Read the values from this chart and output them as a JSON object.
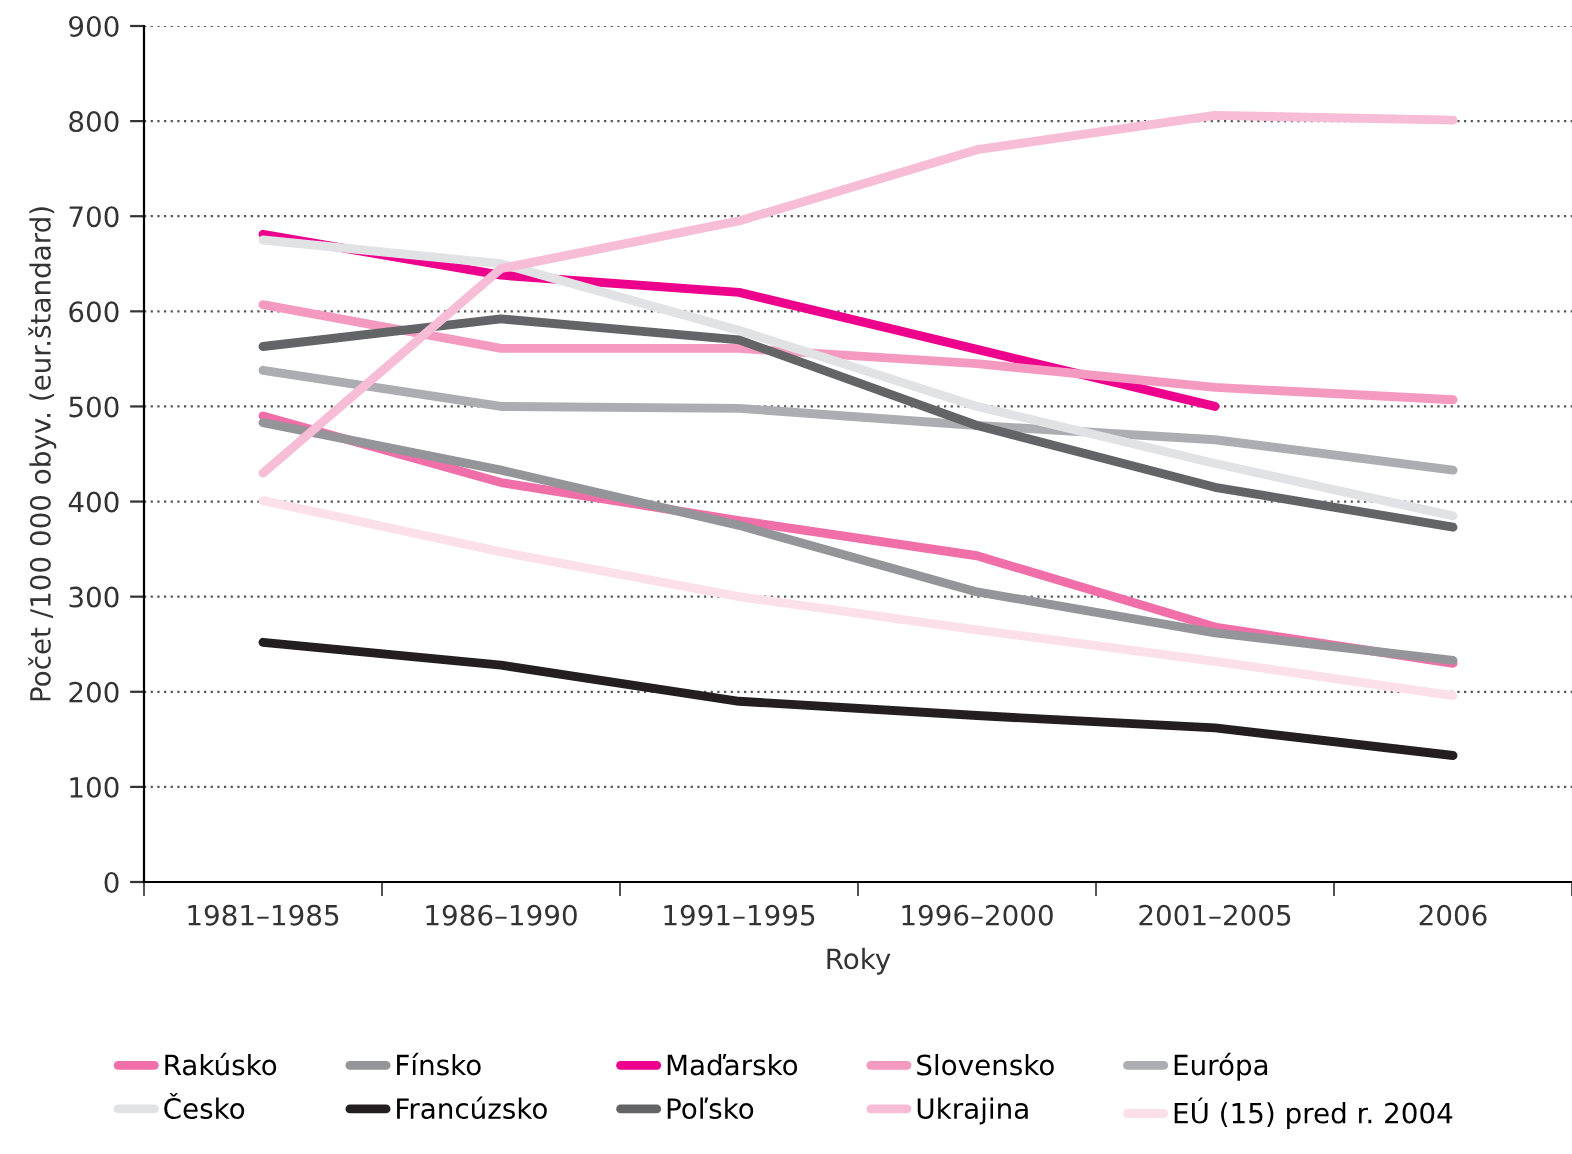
{
  "chart_data": {
    "type": "line",
    "xlabel": "Roky",
    "ylabel": "Počet /100 000 obyv. (eur.štandard)",
    "categories": [
      "1981–1985",
      "1986–1990",
      "1991–1995",
      "1996–2000",
      "2001–2005",
      "2006"
    ],
    "ylim": [
      0,
      900
    ],
    "yticks": [
      0,
      100,
      200,
      300,
      400,
      500,
      600,
      700,
      800,
      900
    ],
    "grid": "y",
    "legend": "bottom",
    "marker": "none",
    "line_style": "solid",
    "series": [
      {
        "name": "Rakúsko",
        "color": "#f06fa8",
        "values": [
          490,
          420,
          380,
          343,
          268,
          230
        ]
      },
      {
        "name": "Fínsko",
        "color": "#939598",
        "values": [
          483,
          433,
          375,
          305,
          262,
          233
        ]
      },
      {
        "name": "Maďarsko",
        "color": "#ec008c",
        "values": [
          681,
          638,
          620,
          560,
          500,
          null
        ]
      },
      {
        "name": "Slovensko",
        "color": "#f49ac1",
        "values": [
          607,
          561,
          561,
          545,
          520,
          507
        ]
      },
      {
        "name": "Európa",
        "color": "#acadb0",
        "values": [
          538,
          500,
          498,
          480,
          465,
          433
        ]
      },
      {
        "name": "Česko",
        "color": "#e1e2e3",
        "values": [
          675,
          650,
          580,
          500,
          440,
          385
        ]
      },
      {
        "name": "Francúzsko",
        "color": "#231f20",
        "values": [
          252,
          228,
          190,
          175,
          162,
          133
        ]
      },
      {
        "name": "Poľsko",
        "color": "#636466",
        "values": [
          563,
          592,
          570,
          480,
          415,
          373
        ]
      },
      {
        "name": "Ukrajina",
        "color": "#f7bcd6",
        "values": [
          430,
          645,
          695,
          770,
          806,
          801
        ]
      },
      {
        "name": "EÚ (15) pred r. 2004",
        "color": "#fbe0ea",
        "values": [
          401,
          347,
          300,
          265,
          232,
          196
        ]
      }
    ]
  }
}
